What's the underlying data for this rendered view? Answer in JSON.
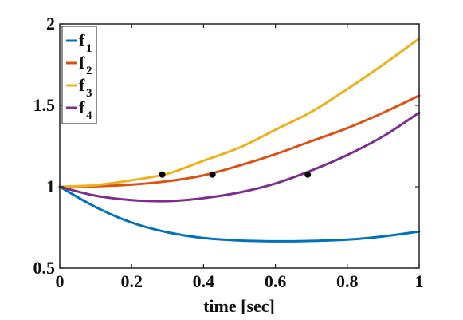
{
  "chart_data": {
    "type": "line",
    "title": "",
    "xlabel": "time [sec]",
    "ylabel": "",
    "xlim": [
      0,
      1
    ],
    "ylim": [
      0.5,
      2
    ],
    "xticks": [
      0,
      0.2,
      0.4,
      0.6,
      0.8,
      1
    ],
    "xtick_labels": [
      "0",
      "0.2",
      "0.4",
      "0.6",
      "0.8",
      "1"
    ],
    "yticks": [
      0.5,
      1,
      1.5,
      2
    ],
    "ytick_labels": [
      "0.5",
      "1",
      "1.5",
      "2"
    ],
    "grid": false,
    "legend_position": "top-left",
    "x": [
      0,
      0.1,
      0.2,
      0.3,
      0.4,
      0.5,
      0.6,
      0.7,
      0.8,
      0.9,
      1.0
    ],
    "series": [
      {
        "name": "f",
        "subscript": "1",
        "color": "#0072BD",
        "values": [
          1.0,
          0.875,
          0.78,
          0.72,
          0.685,
          0.67,
          0.665,
          0.667,
          0.675,
          0.695,
          0.725
        ]
      },
      {
        "name": "f",
        "subscript": "2",
        "color": "#D95319",
        "values": [
          1.0,
          1.003,
          1.013,
          1.034,
          1.07,
          1.13,
          1.2,
          1.28,
          1.36,
          1.455,
          1.56
        ]
      },
      {
        "name": "f",
        "subscript": "3",
        "color": "#EDB120",
        "values": [
          1.0,
          1.01,
          1.04,
          1.08,
          1.16,
          1.24,
          1.35,
          1.46,
          1.6,
          1.75,
          1.91
        ]
      },
      {
        "name": "f",
        "subscript": "4",
        "color": "#7E2F8E",
        "values": [
          1.0,
          0.945,
          0.918,
          0.912,
          0.93,
          0.965,
          1.02,
          1.1,
          1.195,
          1.31,
          1.455
        ]
      }
    ],
    "markers": [
      {
        "x": 0.285,
        "y": 1.075,
        "color": "#000000"
      },
      {
        "x": 0.425,
        "y": 1.075,
        "color": "#000000"
      },
      {
        "x": 0.69,
        "y": 1.075,
        "color": "#000000"
      }
    ]
  }
}
